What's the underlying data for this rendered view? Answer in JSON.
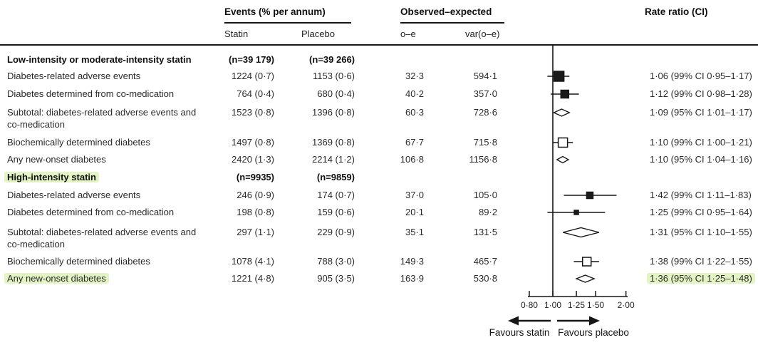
{
  "figure": {
    "columns": {
      "events_group": "Events (% per annum)",
      "observed_group": "Observed–expected",
      "statin": "Statin",
      "placebo": "Placebo",
      "oe": "o–e",
      "var_oe": "var(o–e)",
      "rate_ratio": "Rate ratio (CI)"
    }
  },
  "colors": {
    "ink": "#161616",
    "highlight": "#e3f3c3",
    "marker_fill": "#1a1a1a",
    "open_fill": "#ffffff"
  },
  "chart_data": {
    "type": "forest",
    "x_scale": "log",
    "axis": {
      "ticks": [
        0.8,
        1.0,
        1.25,
        1.5,
        2.0
      ],
      "tick_labels": [
        "0·80",
        "1·00",
        "1·25",
        "1·50",
        "2·00"
      ],
      "reference_line": 1.0,
      "left_label": "Favours statin",
      "right_label": "Favours placebo"
    },
    "rows": [
      {
        "kind": "group",
        "label": "Low-intensity or moderate-intensity statin",
        "statin": "(n=39 179)",
        "placebo": "(n=39 266)"
      },
      {
        "kind": "data",
        "label": "Diabetes-related adverse events",
        "statin": "1224 (0·7)",
        "placebo": "1153 (0·6)",
        "oe": "32·3",
        "var_oe": "594·1",
        "rr": 1.06,
        "ci_low": 0.95,
        "ci_high": 1.17,
        "ci_level": "99%",
        "rr_text": "1·06 (99% CI 0·95–1·17)",
        "marker": "square-filled",
        "marker_size": 14
      },
      {
        "kind": "data",
        "label": "Diabetes determined from co-medication",
        "statin": "764 (0·4)",
        "placebo": "680 (0·4)",
        "oe": "40·2",
        "var_oe": "357·0",
        "rr": 1.12,
        "ci_low": 0.98,
        "ci_high": 1.28,
        "ci_level": "99%",
        "rr_text": "1·12 (99% CI 0·98–1·28)",
        "marker": "square-filled",
        "marker_size": 11
      },
      {
        "kind": "data",
        "label": "Subtotal: diabetes-related adverse events and\nco-medication",
        "statin": "1523 (0·8)",
        "placebo": "1396 (0·8)",
        "oe": "60·3",
        "var_oe": "728·6",
        "rr": 1.09,
        "ci_low": 1.01,
        "ci_high": 1.17,
        "ci_level": "95%",
        "rr_text": "1·09 (95% CI 1·01–1·17)",
        "marker": "diamond",
        "marker_size": 10
      },
      {
        "kind": "data",
        "label": "Biochemically determined diabetes",
        "statin": "1497 (0·8)",
        "placebo": "1369 (0·8)",
        "oe": "67·7",
        "var_oe": "715·8",
        "rr": 1.1,
        "ci_low": 1.0,
        "ci_high": 1.21,
        "ci_level": "99%",
        "rr_text": "1·10 (99% CI 1·00–1·21)",
        "marker": "square-open",
        "marker_size": 13
      },
      {
        "kind": "data",
        "label": "Any new-onset diabetes",
        "statin": "2420 (1·3)",
        "placebo": "2214 (1·2)",
        "oe": "106·8",
        "var_oe": "1156·8",
        "rr": 1.1,
        "ci_low": 1.04,
        "ci_high": 1.16,
        "ci_level": "95%",
        "rr_text": "1·10 (95% CI 1·04–1·16)",
        "marker": "diamond",
        "marker_size": 9
      },
      {
        "kind": "group",
        "label": "High-intensity statin",
        "statin": "(n=9935)",
        "placebo": "(n=9859)",
        "highlight_label": true
      },
      {
        "kind": "data",
        "label": "Diabetes-related adverse events",
        "statin": "246 (0·9)",
        "placebo": "174 (0·7)",
        "oe": "37·0",
        "var_oe": "105·0",
        "rr": 1.42,
        "ci_low": 1.11,
        "ci_high": 1.83,
        "ci_level": "99%",
        "rr_text": "1·42 (99% CI 1·11–1·83)",
        "marker": "square-filled",
        "marker_size": 9
      },
      {
        "kind": "data",
        "label": "Diabetes determined from co-medication",
        "statin": "198 (0·8)",
        "placebo": "159 (0·6)",
        "oe": "20·1",
        "var_oe": "89·2",
        "rr": 1.25,
        "ci_low": 0.95,
        "ci_high": 1.64,
        "ci_level": "99%",
        "rr_text": "1·25 (99% CI 0·95–1·64)",
        "marker": "square-filled",
        "marker_size": 6
      },
      {
        "kind": "data",
        "label": "Subtotal: diabetes-related adverse events and\nco-medication",
        "statin": "297 (1·1)",
        "placebo": "229 (0·9)",
        "oe": "35·1",
        "var_oe": "131·5",
        "rr": 1.31,
        "ci_low": 1.1,
        "ci_high": 1.55,
        "ci_level": "95%",
        "rr_text": "1·31 (95% CI 1·10–1·55)",
        "marker": "diamond",
        "marker_size": 13
      },
      {
        "kind": "data",
        "label": "Biochemically determined diabetes",
        "statin": "1078 (4·1)",
        "placebo": "788 (3·0)",
        "oe": "149·3",
        "var_oe": "465·7",
        "rr": 1.38,
        "ci_low": 1.22,
        "ci_high": 1.55,
        "ci_level": "99%",
        "rr_text": "1·38 (99% CI 1·22–1·55)",
        "marker": "square-open",
        "marker_size": 12
      },
      {
        "kind": "data",
        "label": "Any new-onset diabetes",
        "highlight_label": true,
        "statin": "1221 (4·8)",
        "placebo": "905 (3·5)",
        "oe": "163·9",
        "var_oe": "530·8",
        "rr": 1.36,
        "ci_low": 1.25,
        "ci_high": 1.48,
        "ci_level": "95%",
        "rr_text": "1·36 (95% CI 1·25–1·48)",
        "marker": "diamond",
        "marker_size": 10,
        "highlight_rr": true
      }
    ]
  }
}
